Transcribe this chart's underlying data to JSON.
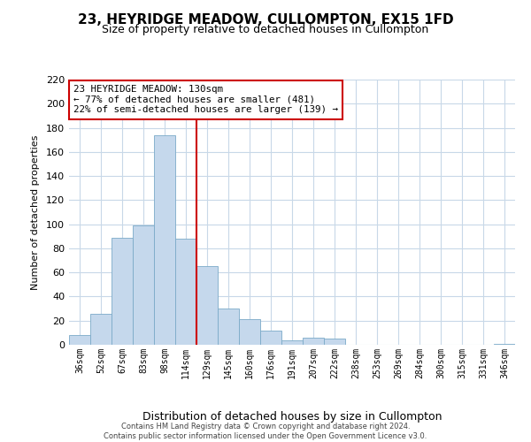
{
  "title": "23, HEYRIDGE MEADOW, CULLOMPTON, EX15 1FD",
  "subtitle": "Size of property relative to detached houses in Cullompton",
  "xlabel": "Distribution of detached houses by size in Cullompton",
  "ylabel": "Number of detached properties",
  "bar_labels": [
    "36sqm",
    "52sqm",
    "67sqm",
    "83sqm",
    "98sqm",
    "114sqm",
    "129sqm",
    "145sqm",
    "160sqm",
    "176sqm",
    "191sqm",
    "207sqm",
    "222sqm",
    "238sqm",
    "253sqm",
    "269sqm",
    "284sqm",
    "300sqm",
    "315sqm",
    "331sqm",
    "346sqm"
  ],
  "bar_values": [
    8,
    26,
    89,
    99,
    174,
    88,
    65,
    30,
    21,
    12,
    4,
    6,
    5,
    0,
    0,
    0,
    0,
    0,
    0,
    0,
    1
  ],
  "bar_color": "#c5d8ec",
  "bar_edge_color": "#7baac8",
  "vline_color": "#cc0000",
  "vline_index": 6,
  "ylim": [
    0,
    220
  ],
  "yticks": [
    0,
    20,
    40,
    60,
    80,
    100,
    120,
    140,
    160,
    180,
    200,
    220
  ],
  "annotation_title": "23 HEYRIDGE MEADOW: 130sqm",
  "annotation_line1": "← 77% of detached houses are smaller (481)",
  "annotation_line2": "22% of semi-detached houses are larger (139) →",
  "annotation_box_color": "#ffffff",
  "annotation_box_edge": "#cc0000",
  "footer1": "Contains HM Land Registry data © Crown copyright and database right 2024.",
  "footer2": "Contains public sector information licensed under the Open Government Licence v3.0.",
  "bg_color": "#ffffff",
  "grid_color": "#c8d8e8"
}
